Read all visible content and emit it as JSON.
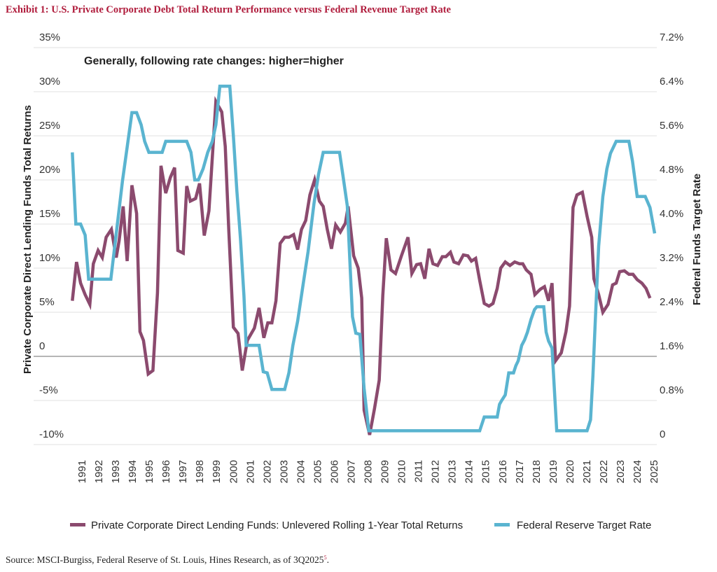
{
  "chart_data": {
    "type": "line",
    "title": "Exhibit 1: U.S. Private Corporate Debt Total Return Performance versus Federal Revenue Target Rate",
    "annotation": "Generally, following rate changes: higher=higher",
    "source": "Source: MSCI-Burgiss, Federal Reserve of St. Louis, Hines Research, as of 3Q2025",
    "source_footnote": "5",
    "ylabel_left": "Private Corporate Direct Lending Funds Total Returns",
    "ylabel_right": "Federal Funds Target Rate",
    "ylim_left": [
      -10,
      35
    ],
    "ylim_right": [
      0,
      7.2
    ],
    "xlim": [
      1990.4,
      2025.1
    ],
    "grid": true,
    "legend_position": "bottom",
    "y_left_ticks": [
      35,
      30,
      25,
      20,
      15,
      10,
      5,
      0,
      -5,
      -10
    ],
    "y_left_tick_labels": [
      "35%",
      "30%",
      "25%",
      "20%",
      "15%",
      "10%",
      "5%",
      "0",
      "-5%",
      "-10%"
    ],
    "y_right_tick_labels": [
      "7.2%",
      "6.4%",
      "5.6%",
      "4.8%",
      "4.0%",
      "3.2%",
      "2.4%",
      "1.6%",
      "0.8%",
      "0"
    ],
    "x_tick_labels": [
      "1991",
      "1992",
      "1993",
      "1994",
      "1995",
      "1996",
      "1997",
      "1998",
      "1999",
      "2000",
      "2001",
      "2002",
      "2003",
      "2004",
      "2005",
      "2006",
      "2007",
      "2008",
      "2009",
      "2010",
      "2011",
      "2012",
      "2013",
      "2014",
      "2015",
      "2016",
      "2017",
      "2018",
      "2019",
      "2020",
      "2021",
      "2022",
      "2023",
      "2024",
      "2025"
    ],
    "colors": {
      "returns": "#8b4a6e",
      "rate": "#5ab4d0",
      "title": "#b01c3c"
    },
    "series": [
      {
        "name": "Private Corporate Direct Lending Funds: Unlevered Rolling 1-Year Total Returns",
        "axis": "left",
        "points": [
          [
            1990.43,
            6.3
          ],
          [
            1990.68,
            10.7
          ],
          [
            1990.92,
            8.3
          ],
          [
            1991.19,
            7.0
          ],
          [
            1991.47,
            5.9
          ],
          [
            1991.68,
            10.5
          ],
          [
            1991.96,
            12.0
          ],
          [
            1992.21,
            11.2
          ],
          [
            1992.44,
            13.5
          ],
          [
            1992.75,
            14.4
          ],
          [
            1993.04,
            11.2
          ],
          [
            1993.21,
            13.1
          ],
          [
            1993.45,
            17.0
          ],
          [
            1993.69,
            10.8
          ],
          [
            1993.97,
            19.4
          ],
          [
            1994.25,
            16.2
          ],
          [
            1994.45,
            2.8
          ],
          [
            1994.66,
            1.8
          ],
          [
            1994.94,
            -2.0
          ],
          [
            1995.22,
            -1.6
          ],
          [
            1995.49,
            7.2
          ],
          [
            1995.7,
            21.6
          ],
          [
            1995.98,
            18.5
          ],
          [
            1996.26,
            20.3
          ],
          [
            1996.51,
            21.4
          ],
          [
            1996.7,
            12.0
          ],
          [
            1997.02,
            11.7
          ],
          [
            1997.23,
            19.3
          ],
          [
            1997.44,
            17.6
          ],
          [
            1997.76,
            17.9
          ],
          [
            1997.99,
            19.6
          ],
          [
            1998.27,
            13.7
          ],
          [
            1998.55,
            16.5
          ],
          [
            1998.96,
            28.9
          ],
          [
            1999.31,
            27.7
          ],
          [
            1999.52,
            23.8
          ],
          [
            1999.73,
            14.2
          ],
          [
            2000.0,
            3.3
          ],
          [
            2000.28,
            2.6
          ],
          [
            2000.53,
            -1.6
          ],
          [
            2000.83,
            1.8
          ],
          [
            2001.25,
            3.2
          ],
          [
            2001.53,
            5.5
          ],
          [
            2001.81,
            2.1
          ],
          [
            2002.05,
            3.8
          ],
          [
            2002.29,
            3.8
          ],
          [
            2002.53,
            6.3
          ],
          [
            2002.78,
            12.8
          ],
          [
            2003.05,
            13.5
          ],
          [
            2003.3,
            13.5
          ],
          [
            2003.58,
            13.8
          ],
          [
            2003.82,
            12.1
          ],
          [
            2004.05,
            14.4
          ],
          [
            2004.3,
            15.4
          ],
          [
            2004.55,
            18.3
          ],
          [
            2004.83,
            20.0
          ],
          [
            2005.11,
            17.6
          ],
          [
            2005.34,
            17.0
          ],
          [
            2005.58,
            14.4
          ],
          [
            2005.83,
            12.2
          ],
          [
            2006.08,
            14.9
          ],
          [
            2006.36,
            14.1
          ],
          [
            2006.66,
            15.1
          ],
          [
            2006.82,
            17.0
          ],
          [
            2007.15,
            11.4
          ],
          [
            2007.42,
            10.0
          ],
          [
            2007.63,
            6.6
          ],
          [
            2007.77,
            -6.1
          ],
          [
            2008.1,
            -8.9
          ],
          [
            2008.39,
            -5.9
          ],
          [
            2008.67,
            -2.7
          ],
          [
            2008.88,
            6.9
          ],
          [
            2009.09,
            13.4
          ],
          [
            2009.37,
            9.8
          ],
          [
            2009.64,
            9.4
          ],
          [
            2009.99,
            11.4
          ],
          [
            2010.38,
            13.5
          ],
          [
            2010.61,
            9.4
          ],
          [
            2010.89,
            10.4
          ],
          [
            2011.13,
            10.5
          ],
          [
            2011.38,
            8.8
          ],
          [
            2011.63,
            12.2
          ],
          [
            2011.86,
            10.5
          ],
          [
            2012.14,
            10.3
          ],
          [
            2012.42,
            11.3
          ],
          [
            2012.63,
            11.3
          ],
          [
            2012.9,
            11.8
          ],
          [
            2013.11,
            10.7
          ],
          [
            2013.39,
            10.5
          ],
          [
            2013.67,
            11.5
          ],
          [
            2013.94,
            11.4
          ],
          [
            2014.15,
            10.8
          ],
          [
            2014.4,
            11.1
          ],
          [
            2014.64,
            8.6
          ],
          [
            2014.91,
            6.0
          ],
          [
            2015.19,
            5.7
          ],
          [
            2015.43,
            6.0
          ],
          [
            2015.68,
            7.7
          ],
          [
            2015.89,
            10.0
          ],
          [
            2016.16,
            10.7
          ],
          [
            2016.44,
            10.3
          ],
          [
            2016.72,
            10.7
          ],
          [
            2017.0,
            10.5
          ],
          [
            2017.2,
            10.5
          ],
          [
            2017.41,
            9.8
          ],
          [
            2017.69,
            9.3
          ],
          [
            2017.92,
            7.0
          ],
          [
            2018.24,
            7.6
          ],
          [
            2018.49,
            7.9
          ],
          [
            2018.73,
            6.3
          ],
          [
            2018.94,
            8.3
          ],
          [
            2019.15,
            -0.5
          ],
          [
            2019.49,
            0.4
          ],
          [
            2019.77,
            2.8
          ],
          [
            2019.98,
            5.7
          ],
          [
            2020.19,
            16.9
          ],
          [
            2020.42,
            18.3
          ],
          [
            2020.74,
            18.6
          ],
          [
            2021.02,
            15.9
          ],
          [
            2021.3,
            13.5
          ],
          [
            2021.43,
            8.8
          ],
          [
            2021.71,
            7.0
          ],
          [
            2021.96,
            5.0
          ],
          [
            2022.27,
            5.9
          ],
          [
            2022.54,
            8.1
          ],
          [
            2022.75,
            8.3
          ],
          [
            2022.96,
            9.6
          ],
          [
            2023.24,
            9.7
          ],
          [
            2023.51,
            9.3
          ],
          [
            2023.75,
            9.3
          ],
          [
            2024.0,
            8.7
          ],
          [
            2024.28,
            8.3
          ],
          [
            2024.53,
            7.7
          ],
          [
            2024.76,
            6.6
          ]
        ]
      },
      {
        "name": "Federal Reserve Target Rate",
        "axis": "right",
        "points": [
          [
            1990.43,
            5.3
          ],
          [
            1990.64,
            4.0
          ],
          [
            1990.92,
            4.0
          ],
          [
            1991.19,
            3.8
          ],
          [
            1991.4,
            3.0
          ],
          [
            1992.72,
            3.0
          ],
          [
            1993.07,
            3.9
          ],
          [
            1993.41,
            4.78
          ],
          [
            1993.76,
            5.55
          ],
          [
            1993.97,
            6.02
          ],
          [
            1994.25,
            6.02
          ],
          [
            1994.52,
            5.8
          ],
          [
            1994.73,
            5.5
          ],
          [
            1994.98,
            5.3
          ],
          [
            1995.77,
            5.3
          ],
          [
            1995.98,
            5.5
          ],
          [
            1997.23,
            5.5
          ],
          [
            1997.48,
            5.3
          ],
          [
            1997.71,
            4.8
          ],
          [
            1997.92,
            4.8
          ],
          [
            1998.2,
            5.0
          ],
          [
            1998.48,
            5.3
          ],
          [
            1998.75,
            5.5
          ],
          [
            1998.96,
            5.8
          ],
          [
            1999.2,
            6.5
          ],
          [
            1999.79,
            6.5
          ],
          [
            2000.0,
            5.6
          ],
          [
            2000.21,
            4.6
          ],
          [
            2000.42,
            3.74
          ],
          [
            2000.63,
            2.7
          ],
          [
            2000.76,
            1.8
          ],
          [
            2001.53,
            1.8
          ],
          [
            2001.78,
            1.32
          ],
          [
            2002.01,
            1.3
          ],
          [
            2002.29,
            1.0
          ],
          [
            2003.05,
            1.0
          ],
          [
            2003.3,
            1.3
          ],
          [
            2003.54,
            1.8
          ],
          [
            2003.82,
            2.24
          ],
          [
            2004.16,
            2.93
          ],
          [
            2004.44,
            3.5
          ],
          [
            2004.79,
            4.37
          ],
          [
            2005.06,
            4.9
          ],
          [
            2005.34,
            5.3
          ],
          [
            2006.31,
            5.3
          ],
          [
            2006.52,
            4.87
          ],
          [
            2006.77,
            4.33
          ],
          [
            2007.08,
            2.32
          ],
          [
            2007.28,
            2.02
          ],
          [
            2007.52,
            2.0
          ],
          [
            2007.77,
            1.02
          ],
          [
            2008.05,
            0.25
          ],
          [
            2014.64,
            0.25
          ],
          [
            2014.91,
            0.5
          ],
          [
            2015.68,
            0.5
          ],
          [
            2015.82,
            0.73
          ],
          [
            2015.95,
            0.8
          ],
          [
            2016.16,
            0.9
          ],
          [
            2016.37,
            1.3
          ],
          [
            2016.65,
            1.3
          ],
          [
            2016.79,
            1.43
          ],
          [
            2016.93,
            1.52
          ],
          [
            2017.14,
            1.8
          ],
          [
            2017.31,
            1.9
          ],
          [
            2017.48,
            2.04
          ],
          [
            2017.69,
            2.27
          ],
          [
            2017.9,
            2.45
          ],
          [
            2018.04,
            2.5
          ],
          [
            2018.45,
            2.5
          ],
          [
            2018.59,
            2.04
          ],
          [
            2018.73,
            1.88
          ],
          [
            2018.94,
            1.75
          ],
          [
            2019.22,
            0.25
          ],
          [
            2021.02,
            0.25
          ],
          [
            2021.23,
            0.45
          ],
          [
            2021.37,
            1.25
          ],
          [
            2021.51,
            2.25
          ],
          [
            2021.71,
            3.6
          ],
          [
            2021.96,
            4.5
          ],
          [
            2022.2,
            5.0
          ],
          [
            2022.41,
            5.28
          ],
          [
            2022.75,
            5.5
          ],
          [
            2023.51,
            5.5
          ],
          [
            2023.72,
            5.14
          ],
          [
            2024.0,
            4.5
          ],
          [
            2024.48,
            4.5
          ],
          [
            2024.76,
            4.3
          ],
          [
            2025.04,
            3.83
          ]
        ]
      }
    ]
  }
}
